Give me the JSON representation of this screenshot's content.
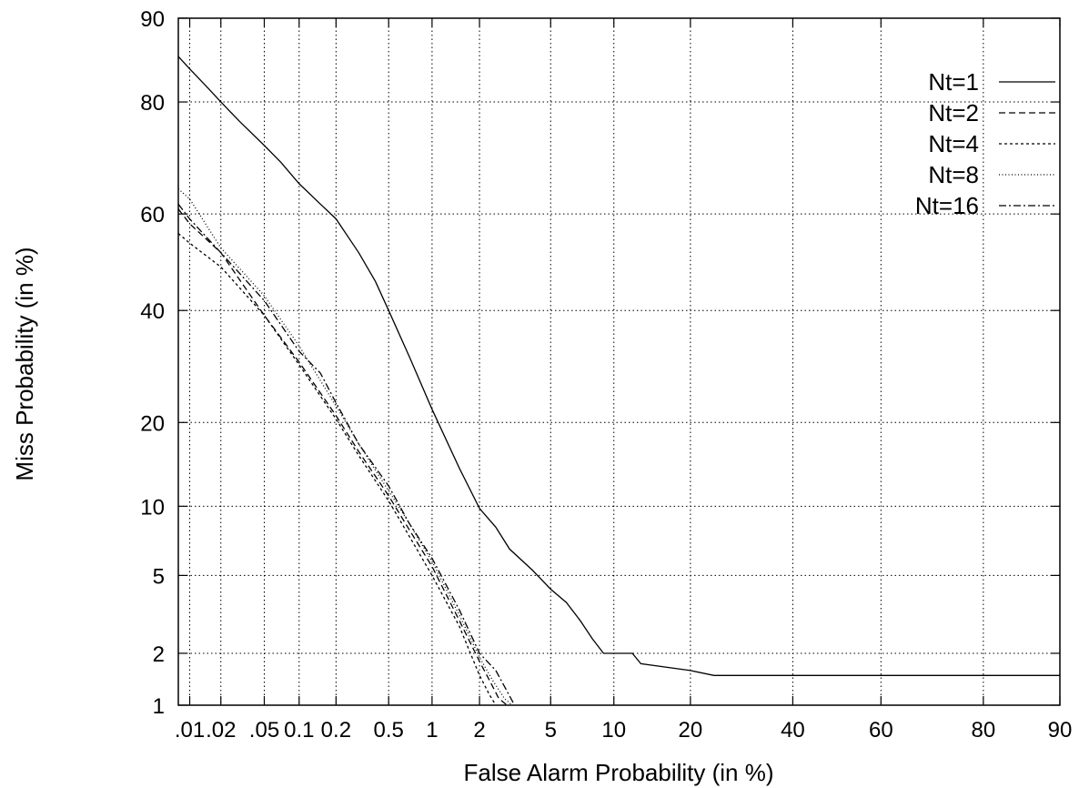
{
  "chart_data": {
    "type": "line",
    "title": "",
    "xlabel": "False Alarm Probability (in %)",
    "ylabel": "Miss Probability (in %)",
    "x_scale": "normal-deviate",
    "y_scale": "normal-deviate",
    "xlim": [
      0.0077,
      90
    ],
    "ylim": [
      1,
      90
    ],
    "grid": true,
    "legend_position": "top-right",
    "x_ticks": [
      {
        "value": 0.01,
        "label": ".01"
      },
      {
        "value": 0.02,
        "label": ".02"
      },
      {
        "value": 0.05,
        "label": ".05"
      },
      {
        "value": 0.1,
        "label": "0.1"
      },
      {
        "value": 0.2,
        "label": "0.2"
      },
      {
        "value": 0.5,
        "label": "0.5"
      },
      {
        "value": 1,
        "label": "1"
      },
      {
        "value": 2,
        "label": "2"
      },
      {
        "value": 5,
        "label": "5"
      },
      {
        "value": 10,
        "label": "10"
      },
      {
        "value": 20,
        "label": "20"
      },
      {
        "value": 40,
        "label": "40"
      },
      {
        "value": 60,
        "label": "60"
      },
      {
        "value": 80,
        "label": "80"
      },
      {
        "value": 90,
        "label": "90"
      }
    ],
    "y_ticks": [
      {
        "value": 1,
        "label": "1"
      },
      {
        "value": 2,
        "label": "2"
      },
      {
        "value": 5,
        "label": "5"
      },
      {
        "value": 10,
        "label": "10"
      },
      {
        "value": 20,
        "label": "20"
      },
      {
        "value": 40,
        "label": "40"
      },
      {
        "value": 60,
        "label": "60"
      },
      {
        "value": 80,
        "label": "80"
      },
      {
        "value": 90,
        "label": "90"
      }
    ],
    "series": [
      {
        "name": "Nt=1",
        "style": "solid",
        "points": [
          [
            0.0077,
            86
          ],
          [
            0.01,
            84.5
          ],
          [
            0.015,
            82
          ],
          [
            0.02,
            80
          ],
          [
            0.03,
            77
          ],
          [
            0.05,
            73
          ],
          [
            0.07,
            70
          ],
          [
            0.1,
            66
          ],
          [
            0.15,
            62
          ],
          [
            0.2,
            59
          ],
          [
            0.3,
            52
          ],
          [
            0.4,
            46
          ],
          [
            0.5,
            40
          ],
          [
            0.7,
            31
          ],
          [
            1,
            22
          ],
          [
            1.5,
            14
          ],
          [
            2,
            9.8
          ],
          [
            2.5,
            8.2
          ],
          [
            3,
            6.6
          ],
          [
            4,
            5.3
          ],
          [
            5,
            4.3
          ],
          [
            6,
            3.7
          ],
          [
            7,
            3.0
          ],
          [
            8,
            2.4
          ],
          [
            9,
            2.0
          ],
          [
            12,
            2.0
          ],
          [
            13,
            1.75
          ],
          [
            20,
            1.6
          ],
          [
            24,
            1.5
          ],
          [
            90,
            1.5
          ]
        ]
      },
      {
        "name": "Nt=2",
        "style": "dashed",
        "points": [
          [
            0.0077,
            61
          ],
          [
            0.01,
            58
          ],
          [
            0.02,
            52
          ],
          [
            0.05,
            39
          ],
          [
            0.1,
            30
          ],
          [
            0.2,
            21
          ],
          [
            0.3,
            16
          ],
          [
            0.5,
            11
          ],
          [
            0.7,
            8
          ],
          [
            1,
            5.5
          ],
          [
            1.5,
            3.0
          ],
          [
            2,
            1.8
          ],
          [
            2.3,
            1.4
          ],
          [
            2.6,
            1.1
          ],
          [
            2.9,
            1.0
          ]
        ]
      },
      {
        "name": "Nt=4",
        "style": "short-dashed",
        "points": [
          [
            0.0077,
            56
          ],
          [
            0.01,
            54
          ],
          [
            0.02,
            49
          ],
          [
            0.05,
            39
          ],
          [
            0.1,
            29.5
          ],
          [
            0.2,
            20.5
          ],
          [
            0.3,
            15.5
          ],
          [
            0.5,
            10.5
          ],
          [
            0.7,
            7.5
          ],
          [
            1,
            5.0
          ],
          [
            1.5,
            2.8
          ],
          [
            2,
            1.5
          ],
          [
            2.3,
            1.15
          ],
          [
            2.5,
            1.0
          ]
        ]
      },
      {
        "name": "Nt=8",
        "style": "dotted",
        "points": [
          [
            0.0077,
            65
          ],
          [
            0.01,
            63
          ],
          [
            0.02,
            53
          ],
          [
            0.05,
            43
          ],
          [
            0.1,
            33
          ],
          [
            0.2,
            22.5
          ],
          [
            0.3,
            17
          ],
          [
            0.5,
            11.5
          ],
          [
            0.7,
            8.5
          ],
          [
            1,
            5.8
          ],
          [
            1.5,
            3.2
          ],
          [
            2,
            1.9
          ],
          [
            2.4,
            1.4
          ],
          [
            2.8,
            1.1
          ],
          [
            3.1,
            1.0
          ]
        ]
      },
      {
        "name": "Nt=16",
        "style": "dash-dot",
        "points": [
          [
            0.0077,
            62
          ],
          [
            0.01,
            59
          ],
          [
            0.02,
            52
          ],
          [
            0.05,
            42
          ],
          [
            0.1,
            32
          ],
          [
            0.15,
            28
          ],
          [
            0.2,
            23
          ],
          [
            0.3,
            17
          ],
          [
            0.5,
            12
          ],
          [
            0.7,
            8.5
          ],
          [
            1,
            6.0
          ],
          [
            1.5,
            3.4
          ],
          [
            2,
            2.0
          ],
          [
            2.5,
            1.6
          ],
          [
            3.2,
            1.0
          ]
        ]
      }
    ]
  }
}
